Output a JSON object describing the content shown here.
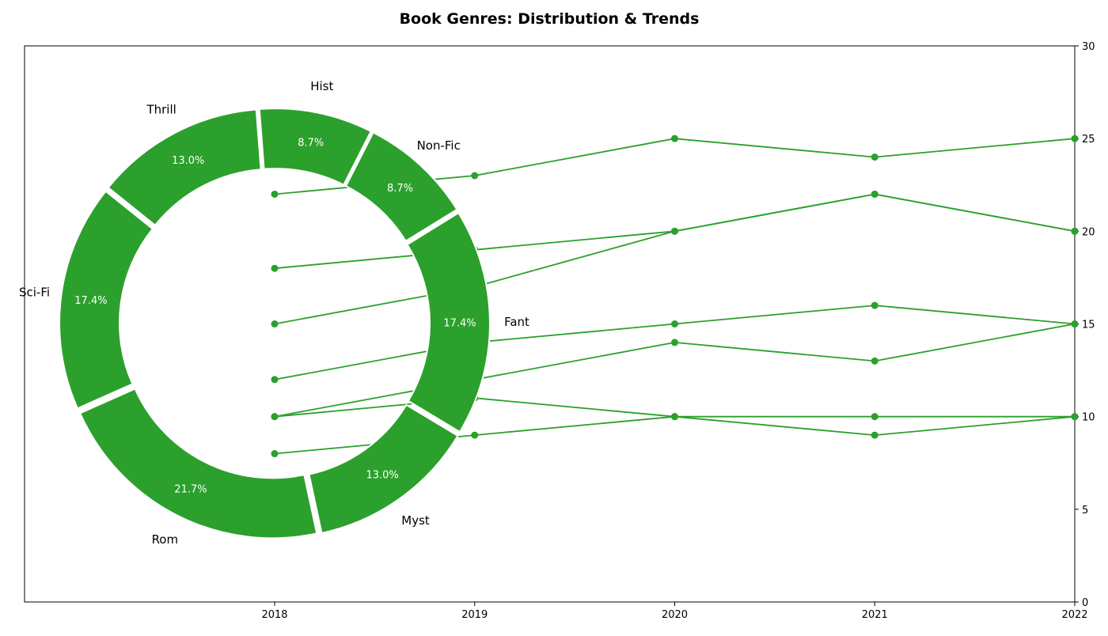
{
  "chart_data": {
    "title": "Book Genres: Distribution & Trends",
    "colors": {
      "series": "#2ca02c",
      "axis": "#000000",
      "background": "#ffffff",
      "wedge_edge": "#ffffff",
      "pct_text": "#ffffff"
    },
    "donut": {
      "type": "pie",
      "style": "donut",
      "slices": [
        {
          "label": "Fant",
          "value": 17.4,
          "pct_label": "17.4%"
        },
        {
          "label": "Non-Fic",
          "value": 8.7,
          "pct_label": "8.7%"
        },
        {
          "label": "Hist",
          "value": 8.7,
          "pct_label": "8.7%"
        },
        {
          "label": "Thrill",
          "value": 13.0,
          "pct_label": "13.0%"
        },
        {
          "label": "Sci-Fi",
          "value": 17.4,
          "pct_label": "17.4%"
        },
        {
          "label": "Rom",
          "value": 21.7,
          "pct_label": "21.7%"
        },
        {
          "label": "Myst",
          "value": 13.0,
          "pct_label": "13.0%"
        }
      ]
    },
    "trends": {
      "type": "line",
      "x": [
        2018,
        2019,
        2020,
        2021,
        2022
      ],
      "x_tick_labels": [
        "2018",
        "2019",
        "2020",
        "2021",
        "2022"
      ],
      "y_ticks": [
        "0",
        "5",
        "10",
        "15",
        "20",
        "25",
        "30"
      ],
      "ylim": [
        0,
        30
      ],
      "y_axis_side": "right",
      "grid": false,
      "series": [
        {
          "values": [
            22,
            23,
            25,
            24,
            25
          ]
        },
        {
          "values": [
            18,
            19,
            20,
            22,
            20
          ]
        },
        {
          "values": [
            15,
            17,
            20,
            22,
            20
          ]
        },
        {
          "values": [
            12,
            14,
            15,
            16,
            15
          ]
        },
        {
          "values": [
            10,
            12,
            14,
            13,
            15
          ]
        },
        {
          "values": [
            10,
            11,
            10,
            10,
            10
          ]
        },
        {
          "values": [
            8,
            9,
            10,
            9,
            10
          ]
        }
      ]
    }
  }
}
